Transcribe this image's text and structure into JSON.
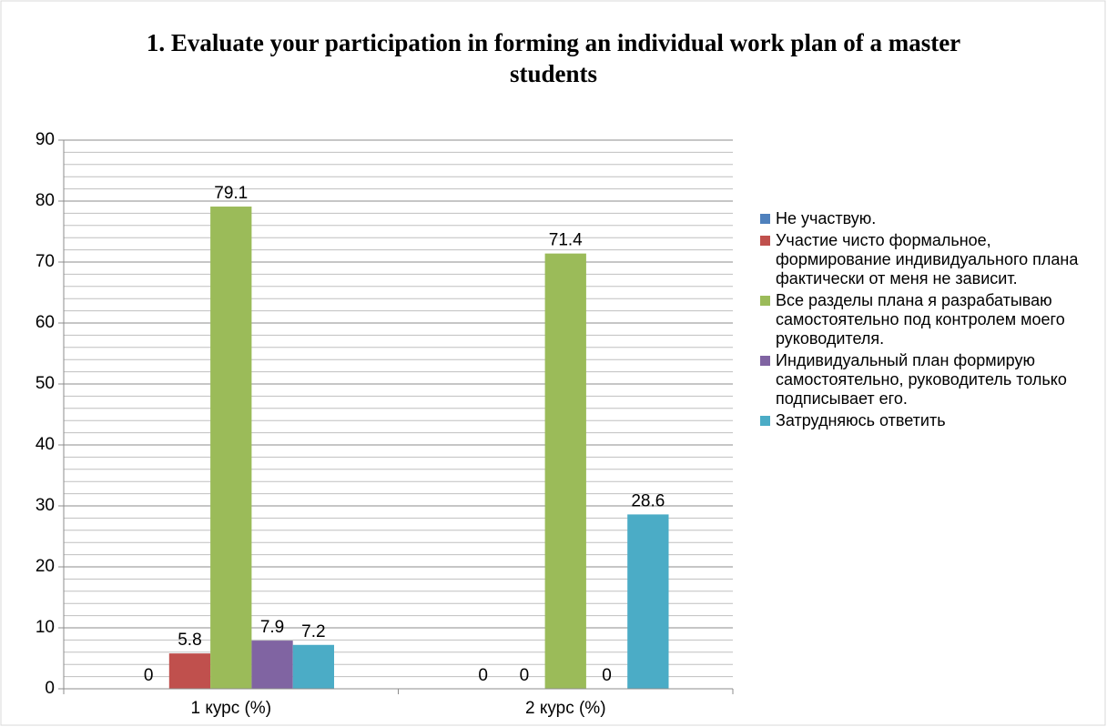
{
  "chart_data": {
    "type": "bar",
    "title": "1. Evaluate your participation in forming an individual work plan of a master students",
    "categories": [
      "1 курс (%)",
      "2 курс (%)"
    ],
    "series": [
      {
        "name": "Не участвую.",
        "color": "#4f81bd",
        "values": [
          0,
          0
        ]
      },
      {
        "name": "Участие чисто формальное, формирование индивидуального плана фактически от меня не зависит.",
        "color": "#c0504d",
        "values": [
          5.8,
          0
        ]
      },
      {
        "name": "Все разделы плана я разрабатываю самостоятельно под контролем моего руководителя.",
        "color": "#9bbb59",
        "values": [
          79.1,
          71.4
        ]
      },
      {
        "name": "Индивидуальный план формирую самостоятельно, руководитель только подписывает его.",
        "color": "#8064a2",
        "values": [
          7.9,
          0
        ]
      },
      {
        "name": "Затрудняюсь ответить",
        "color": "#4bacc6",
        "values": [
          7.2,
          28.6
        ]
      }
    ],
    "ylim": [
      0,
      90
    ],
    "yticks": [
      0,
      10,
      20,
      30,
      40,
      50,
      60,
      70,
      80,
      90
    ],
    "yticks_minor": [
      2,
      4,
      6,
      8,
      12,
      14,
      16,
      18,
      22,
      24,
      26,
      28,
      32,
      34,
      36,
      38,
      42,
      44,
      46,
      48,
      52,
      54,
      56,
      58,
      62,
      64,
      66,
      68,
      72,
      74,
      76,
      78,
      82,
      84,
      86,
      88
    ],
    "grid": true,
    "legend": "right"
  }
}
